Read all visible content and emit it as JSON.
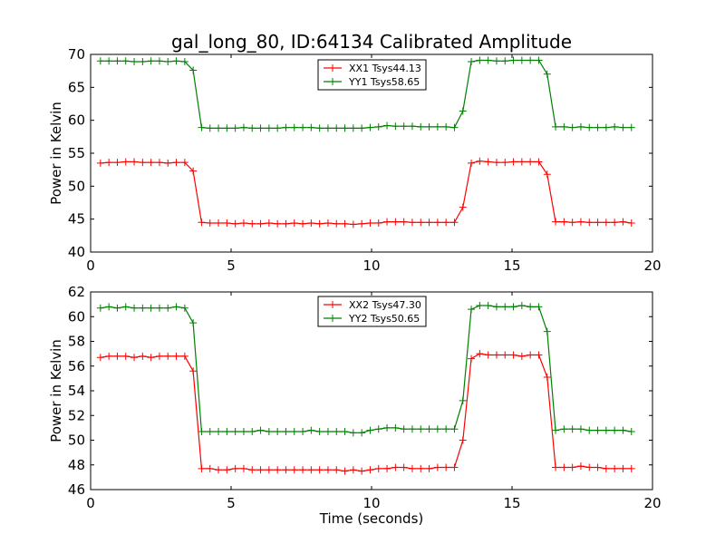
{
  "title": "gal_long_80, ID:64134 Calibrated Amplitude",
  "colors": {
    "red": "#ff0000",
    "green": "#008000"
  },
  "chart_data": [
    {
      "type": "line",
      "xlabel": "",
      "ylabel": "Power in Kelvin",
      "xlim": [
        0,
        20
      ],
      "ylim": [
        40,
        70
      ],
      "xticks": [
        0,
        5,
        10,
        15,
        20
      ],
      "yticks": [
        40,
        45,
        50,
        55,
        60,
        65,
        70
      ],
      "grid": false,
      "legend_position": "top-center",
      "x": [
        0.35,
        0.65,
        0.95,
        1.25,
        1.55,
        1.85,
        2.15,
        2.45,
        2.75,
        3.05,
        3.35,
        3.65,
        3.95,
        4.25,
        4.55,
        4.85,
        5.15,
        5.45,
        5.75,
        6.05,
        6.35,
        6.65,
        6.95,
        7.25,
        7.55,
        7.85,
        8.15,
        8.45,
        8.75,
        9.05,
        9.35,
        9.65,
        9.95,
        10.25,
        10.55,
        10.85,
        11.15,
        11.45,
        11.75,
        12.05,
        12.35,
        12.65,
        12.95,
        13.25,
        13.55,
        13.85,
        14.15,
        14.45,
        14.75,
        15.05,
        15.35,
        15.65,
        15.95,
        16.25,
        16.55,
        16.85,
        17.15,
        17.45,
        17.75,
        18.05,
        18.35,
        18.65,
        18.95,
        19.25
      ],
      "series": [
        {
          "name": "XX1 Tsys44.13",
          "color": "#ff0000",
          "values": [
            53.5,
            53.6,
            53.6,
            53.7,
            53.7,
            53.6,
            53.6,
            53.6,
            53.5,
            53.6,
            53.6,
            52.3,
            44.5,
            44.4,
            44.4,
            44.4,
            44.3,
            44.4,
            44.3,
            44.3,
            44.4,
            44.3,
            44.3,
            44.4,
            44.3,
            44.4,
            44.3,
            44.4,
            44.3,
            44.3,
            44.2,
            44.3,
            44.4,
            44.4,
            44.6,
            44.6,
            44.6,
            44.5,
            44.5,
            44.5,
            44.5,
            44.5,
            44.5,
            46.8,
            53.5,
            53.8,
            53.7,
            53.6,
            53.6,
            53.7,
            53.7,
            53.7,
            53.7,
            51.8,
            44.6,
            44.6,
            44.5,
            44.6,
            44.5,
            44.5,
            44.5,
            44.5,
            44.6,
            44.4
          ]
        },
        {
          "name": "YY1 Tsys58.65",
          "color": "#008000",
          "values": [
            69.0,
            69.0,
            69.0,
            69.0,
            68.9,
            68.9,
            69.0,
            69.0,
            68.9,
            69.0,
            68.9,
            67.6,
            58.9,
            58.8,
            58.8,
            58.8,
            58.8,
            58.9,
            58.8,
            58.8,
            58.8,
            58.8,
            58.9,
            58.9,
            58.9,
            58.9,
            58.8,
            58.8,
            58.8,
            58.8,
            58.8,
            58.8,
            58.9,
            59.0,
            59.2,
            59.1,
            59.1,
            59.1,
            59.0,
            59.0,
            59.0,
            59.0,
            58.9,
            61.4,
            68.9,
            69.1,
            69.1,
            69.0,
            69.0,
            69.1,
            69.1,
            69.1,
            69.1,
            67.0,
            59.0,
            59.0,
            58.9,
            59.0,
            58.9,
            58.9,
            58.9,
            59.0,
            58.9,
            58.9
          ]
        }
      ]
    },
    {
      "type": "line",
      "xlabel": "Time (seconds)",
      "ylabel": "Power in Kelvin",
      "xlim": [
        0,
        20
      ],
      "ylim": [
        46,
        62
      ],
      "xticks": [
        0,
        5,
        10,
        15,
        20
      ],
      "yticks": [
        46,
        48,
        50,
        52,
        54,
        56,
        58,
        60,
        62
      ],
      "grid": false,
      "legend_position": "top-center",
      "x": [
        0.35,
        0.65,
        0.95,
        1.25,
        1.55,
        1.85,
        2.15,
        2.45,
        2.75,
        3.05,
        3.35,
        3.65,
        3.95,
        4.25,
        4.55,
        4.85,
        5.15,
        5.45,
        5.75,
        6.05,
        6.35,
        6.65,
        6.95,
        7.25,
        7.55,
        7.85,
        8.15,
        8.45,
        8.75,
        9.05,
        9.35,
        9.65,
        9.95,
        10.25,
        10.55,
        10.85,
        11.15,
        11.45,
        11.75,
        12.05,
        12.35,
        12.65,
        12.95,
        13.25,
        13.55,
        13.85,
        14.15,
        14.45,
        14.75,
        15.05,
        15.35,
        15.65,
        15.95,
        16.25,
        16.55,
        16.85,
        17.15,
        17.45,
        17.75,
        18.05,
        18.35,
        18.65,
        18.95,
        19.25
      ],
      "series": [
        {
          "name": "XX2 Tsys47.30",
          "color": "#ff0000",
          "values": [
            56.7,
            56.8,
            56.8,
            56.8,
            56.7,
            56.8,
            56.7,
            56.8,
            56.8,
            56.8,
            56.8,
            55.6,
            47.7,
            47.7,
            47.6,
            47.6,
            47.7,
            47.7,
            47.6,
            47.6,
            47.6,
            47.6,
            47.6,
            47.6,
            47.6,
            47.6,
            47.6,
            47.6,
            47.6,
            47.5,
            47.6,
            47.5,
            47.6,
            47.7,
            47.7,
            47.8,
            47.8,
            47.7,
            47.7,
            47.7,
            47.8,
            47.8,
            47.8,
            50.0,
            56.6,
            57.0,
            56.9,
            56.9,
            56.9,
            56.9,
            56.8,
            56.9,
            56.9,
            55.1,
            47.8,
            47.8,
            47.8,
            47.9,
            47.8,
            47.8,
            47.7,
            47.7,
            47.7,
            47.7
          ]
        },
        {
          "name": "YY2 Tsys50.65",
          "color": "#008000",
          "values": [
            60.7,
            60.8,
            60.7,
            60.8,
            60.7,
            60.7,
            60.7,
            60.7,
            60.7,
            60.8,
            60.7,
            59.5,
            50.7,
            50.7,
            50.7,
            50.7,
            50.7,
            50.7,
            50.7,
            50.8,
            50.7,
            50.7,
            50.7,
            50.7,
            50.7,
            50.8,
            50.7,
            50.7,
            50.7,
            50.7,
            50.6,
            50.6,
            50.8,
            50.9,
            51.0,
            51.0,
            50.9,
            50.9,
            50.9,
            50.9,
            50.9,
            50.9,
            50.9,
            53.2,
            60.6,
            60.9,
            60.9,
            60.8,
            60.8,
            60.8,
            60.9,
            60.8,
            60.8,
            58.8,
            50.8,
            50.9,
            50.9,
            50.9,
            50.8,
            50.8,
            50.8,
            50.8,
            50.8,
            50.7
          ]
        }
      ]
    }
  ]
}
